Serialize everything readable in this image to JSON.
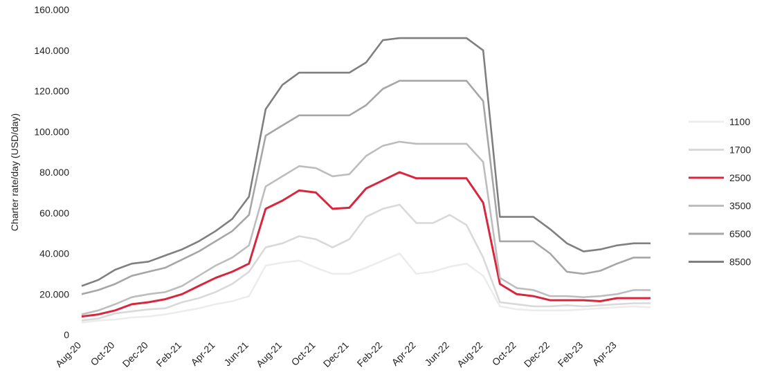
{
  "chart_data": {
    "type": "line",
    "title": "",
    "xlabel": "",
    "ylabel": "Charter rate/day (USD/day)",
    "ylim": [
      0,
      160000
    ],
    "yticks": [
      0,
      20000,
      40000,
      60000,
      80000,
      100000,
      120000,
      140000,
      160000
    ],
    "ytick_labels": [
      "0",
      "20.000",
      "40.000",
      "60.000",
      "80.000",
      "100.000",
      "120.000",
      "140.000",
      "160.000"
    ],
    "x_dates": [
      "2020-08",
      "2020-09",
      "2020-10",
      "2020-11",
      "2020-12",
      "2021-01",
      "2021-02",
      "2021-03",
      "2021-04",
      "2021-05",
      "2021-06",
      "2021-07",
      "2021-08",
      "2021-09",
      "2021-10",
      "2021-11",
      "2021-12",
      "2022-01",
      "2022-02",
      "2022-03",
      "2022-04",
      "2022-05",
      "2022-06",
      "2022-07",
      "2022-08",
      "2022-09",
      "2022-10",
      "2022-11",
      "2022-12",
      "2023-01",
      "2023-02",
      "2023-03",
      "2023-04",
      "2023-05",
      "2023-06"
    ],
    "x_range": [
      "2020-08",
      "2023-06"
    ],
    "xtick_labels": [
      "Aug-20",
      "Oct-20",
      "Dec-20",
      "Feb-21",
      "Apr-21",
      "Jun-21",
      "Aug-21",
      "Oct-21",
      "Dec-21",
      "Feb-22",
      "Apr-22",
      "Jun-22",
      "Aug-22",
      "Oct-22",
      "Dec-22",
      "Feb-23",
      "Apr-23"
    ],
    "grid": false,
    "legend_position": "right",
    "series": [
      {
        "name": "1100",
        "color": "#ececec",
        "values": [
          6000,
          7000,
          7500,
          8500,
          9000,
          10000,
          11500,
          13000,
          15000,
          16500,
          19000,
          34000,
          35500,
          36500,
          33000,
          30000,
          30000,
          33000,
          36500,
          40000,
          30000,
          31000,
          33500,
          35000,
          29000,
          14000,
          12500,
          12000,
          12000,
          12000,
          12500,
          13000,
          13500,
          14000,
          13500
        ]
      },
      {
        "name": "1700",
        "color": "#d9d9d9",
        "values": [
          7000,
          8000,
          10500,
          11500,
          12500,
          13000,
          16000,
          18000,
          21000,
          25000,
          31000,
          43000,
          45000,
          48500,
          47000,
          43000,
          47000,
          58000,
          62000,
          64000,
          55000,
          55000,
          59000,
          54000,
          38000,
          16000,
          15000,
          14000,
          14000,
          14500,
          14000,
          14500,
          15000,
          15500,
          15500
        ]
      },
      {
        "name": "2500",
        "color": "#d7263d",
        "values": [
          9000,
          10000,
          12000,
          15000,
          16000,
          17500,
          20000,
          24000,
          28000,
          31000,
          35000,
          62000,
          66000,
          71000,
          70000,
          62000,
          62500,
          72000,
          76000,
          80000,
          77000,
          77000,
          77000,
          77000,
          65000,
          25000,
          20000,
          19000,
          17000,
          17000,
          17000,
          16500,
          18000,
          18000,
          18000
        ]
      },
      {
        "name": "3500",
        "color": "#bdbdbd",
        "values": [
          10000,
          12000,
          15000,
          18500,
          20000,
          21000,
          24000,
          29000,
          34000,
          38000,
          44000,
          73000,
          78000,
          83000,
          82000,
          78000,
          79000,
          88000,
          93000,
          95000,
          94000,
          94000,
          94000,
          94000,
          85000,
          28000,
          23000,
          22000,
          19000,
          19000,
          18500,
          19000,
          20000,
          22000,
          22000
        ]
      },
      {
        "name": "6500",
        "color": "#a6a6a6",
        "values": [
          20000,
          22000,
          25000,
          29000,
          31000,
          33000,
          37000,
          41000,
          46000,
          51000,
          59000,
          98000,
          103000,
          108000,
          108000,
          108000,
          108000,
          113000,
          121000,
          125000,
          125000,
          125000,
          125000,
          125000,
          115000,
          46000,
          46000,
          46000,
          40000,
          31000,
          30000,
          31500,
          35000,
          38000,
          38000
        ]
      },
      {
        "name": "8500",
        "color": "#7f7f7f",
        "values": [
          24000,
          27000,
          32000,
          35000,
          36000,
          39000,
          42000,
          46000,
          51000,
          57000,
          68000,
          111000,
          123000,
          129000,
          129000,
          129000,
          129000,
          134000,
          145000,
          146000,
          146000,
          146000,
          146000,
          146000,
          140000,
          58000,
          58000,
          58000,
          52000,
          45000,
          41000,
          42000,
          44000,
          45000,
          45000
        ]
      }
    ]
  }
}
